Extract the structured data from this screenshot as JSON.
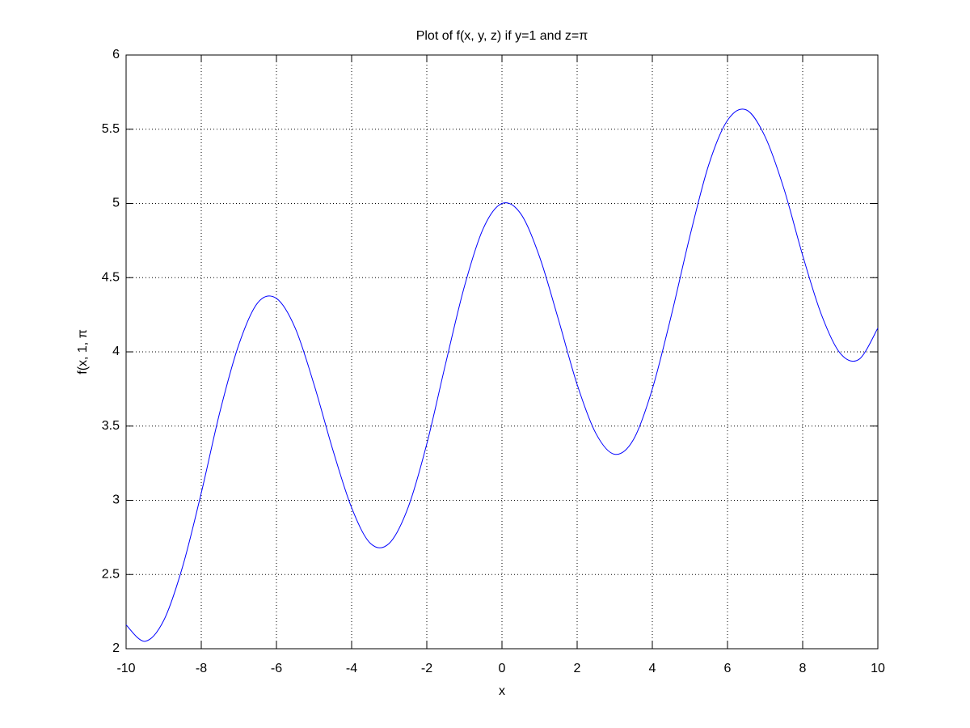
{
  "chart_data": {
    "type": "line",
    "title": "Plot of f(x, y, z) if y=1 and z=π",
    "xlabel": "x",
    "ylabel": "f(x, 1, π",
    "x": [
      -10,
      -9.5,
      -9,
      -8.5,
      -8,
      -7.5,
      -7,
      -6.5,
      -6,
      -5.5,
      -5,
      -4.5,
      -4,
      -3.5,
      -3,
      -2.5,
      -2,
      -1.5,
      -1,
      -0.5,
      0,
      0.5,
      1,
      1.5,
      2,
      2.5,
      3,
      3.5,
      4,
      4.5,
      5,
      5.5,
      6,
      6.5,
      7,
      7.5,
      8,
      8.5,
      9,
      9.5,
      10
    ],
    "series": [
      {
        "color": "#0000ff",
        "values": [
          2.16,
          2.05,
          2.19,
          2.55,
          3.05,
          3.6,
          4.05,
          4.33,
          4.36,
          4.16,
          3.78,
          3.34,
          2.95,
          2.71,
          2.71,
          2.95,
          3.38,
          3.92,
          4.44,
          4.83,
          5.0,
          4.93,
          4.64,
          4.22,
          3.78,
          3.45,
          3.31,
          3.41,
          3.75,
          4.24,
          4.78,
          5.26,
          5.56,
          5.63,
          5.45,
          5.1,
          4.65,
          4.25,
          3.99,
          3.95,
          4.16
        ]
      }
    ],
    "xlim": [
      -10,
      10
    ],
    "xticks": [
      -10,
      -8,
      -6,
      -4,
      -2,
      0,
      2,
      4,
      6,
      8,
      10
    ],
    "ylim": [
      2,
      6
    ],
    "yticks": [
      2,
      2.5,
      3,
      3.5,
      4,
      4.5,
      5,
      5.5,
      6
    ],
    "grid": true
  }
}
